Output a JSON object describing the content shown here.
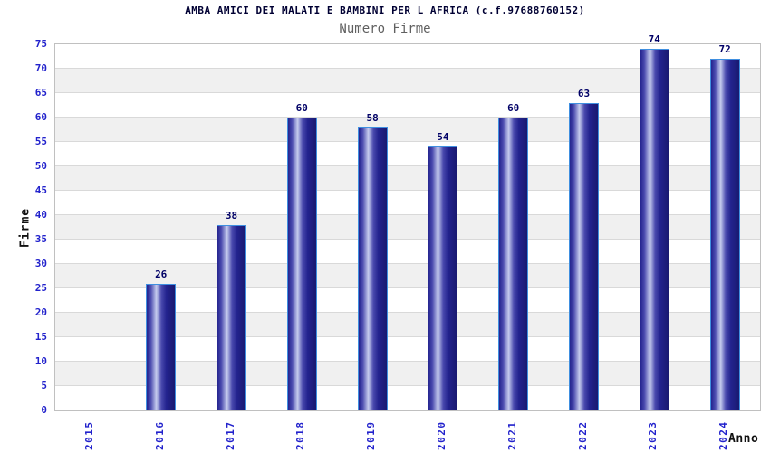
{
  "chart_data": {
    "type": "bar",
    "title": "AMBA AMICI DEI MALATI E BAMBINI PER L AFRICA (c.f.97688760152)",
    "subtitle": "Numero Firme",
    "xlabel": "Anno",
    "ylabel": "Firme",
    "categories": [
      "2015",
      "2016",
      "2017",
      "2018",
      "2019",
      "2020",
      "2021",
      "2022",
      "2023",
      "2024"
    ],
    "values": [
      0,
      26,
      38,
      60,
      58,
      54,
      60,
      63,
      74,
      72
    ],
    "ylim": [
      0,
      75
    ],
    "ytick_step": 5,
    "grid": true,
    "legend": "none",
    "bar_value_labels_shown": true,
    "alternating_bands": true,
    "x_tick_rotation_degrees": 90,
    "colors": {
      "title_color": "#000033",
      "subtitle_color": "#606060",
      "tick_color": "#2222cc",
      "value_color": "#000066",
      "axis_title_color": "#111111",
      "band_color": "#f0f0f0",
      "grid_color": "#d9d9d9",
      "border_color": "#c0c0c0",
      "bar_outline": "#3f8fe0",
      "bar_dark": "#23238e",
      "bar_mid": "#4a4aae",
      "bar_light": "#c6ccee",
      "bar_dark2": "#191970"
    }
  }
}
